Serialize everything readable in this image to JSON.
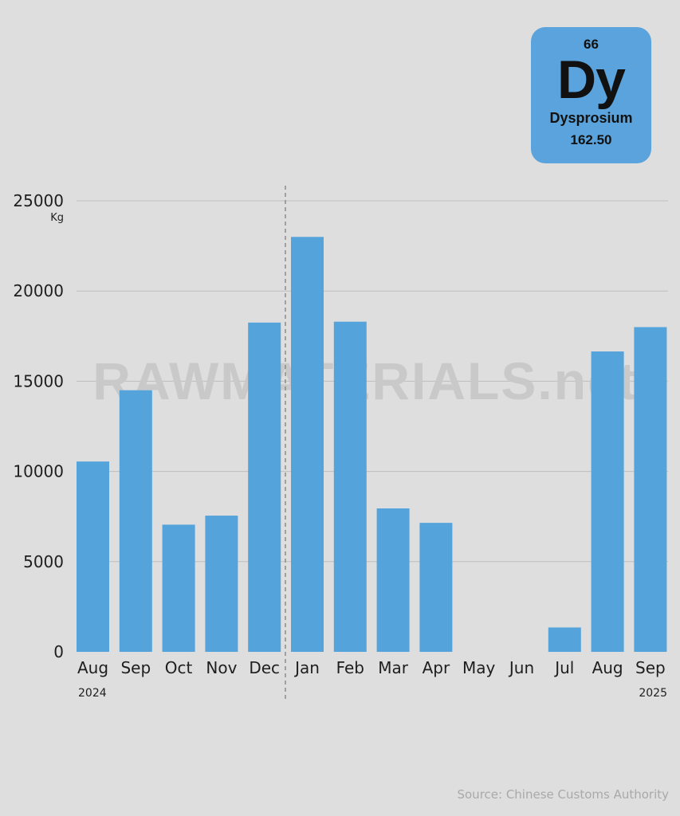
{
  "element": {
    "number": "66",
    "symbol": "Dy",
    "name": "Dysprosium",
    "mass": "162.50"
  },
  "watermark": "RAWMATERIALS.net",
  "source": "Source: Chinese Customs Authority",
  "colors": {
    "background": "#dedede",
    "bar": "#55a3db",
    "grid": "#bdbdbd",
    "card": "#5aa3dc"
  },
  "chart_data": {
    "type": "bar",
    "categories": [
      "Aug",
      "Sep",
      "Oct",
      "Nov",
      "Dec",
      "Jan",
      "Feb",
      "Mar",
      "Apr",
      "May",
      "Jun",
      "Jul",
      "Aug",
      "Sep"
    ],
    "values": [
      10550,
      14500,
      7050,
      7550,
      18250,
      23000,
      18300,
      7950,
      7150,
      0,
      0,
      1350,
      16650,
      18000
    ],
    "year_labels": [
      "2024",
      "2025"
    ],
    "y_unit": "Kg",
    "yticks": [
      0,
      5000,
      10000,
      15000,
      20000,
      25000
    ],
    "ylim": [
      0,
      25000
    ],
    "grid": true,
    "year_divider_after_index": 4
  }
}
